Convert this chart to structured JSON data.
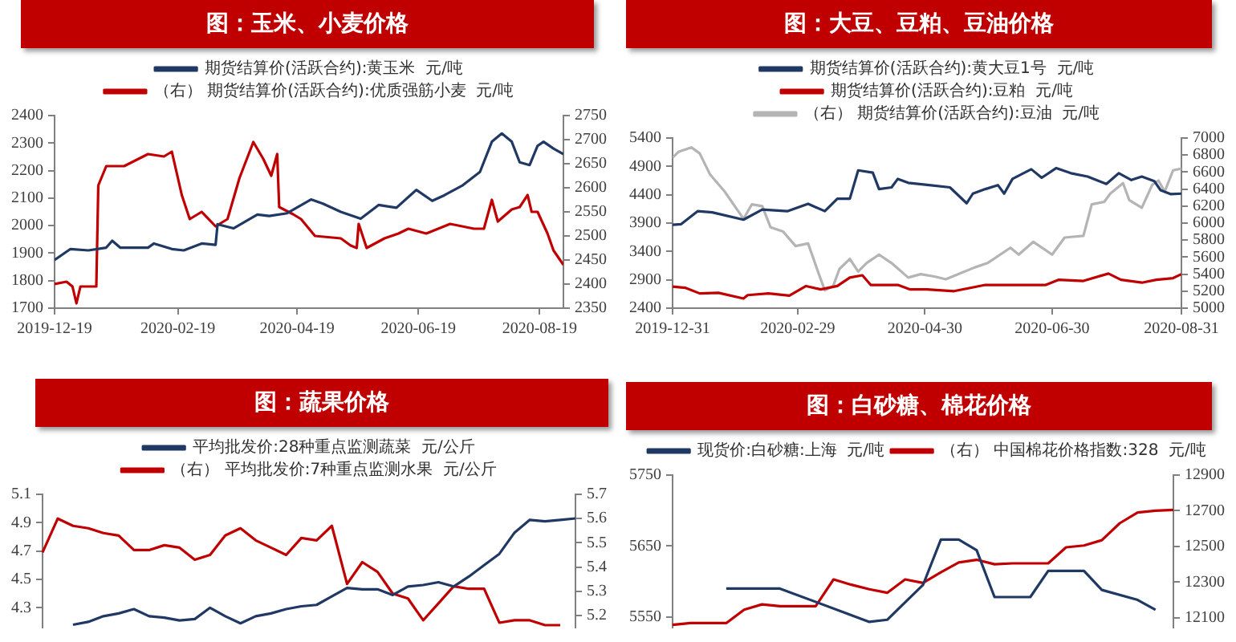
{
  "chart_data": [
    {
      "type": "line",
      "title": "图：玉米、小麦价格",
      "legend": "top",
      "grid": false,
      "xlim": [
        "2019-12-19",
        "2020-08-31"
      ],
      "xticks": [
        "2019-12-19",
        "2020-02-19",
        "2020-04-19",
        "2020-06-19",
        "2020-08-19"
      ],
      "ylim": [
        1700,
        2400
      ],
      "yticks": [
        1700,
        1800,
        1900,
        2000,
        2100,
        2200,
        2300,
        2400
      ],
      "y2lim": [
        2350,
        2750
      ],
      "y2ticks": [
        2350,
        2400,
        2450,
        2500,
        2550,
        2600,
        2650,
        2700,
        2750
      ],
      "series": [
        {
          "name": "期货结算价(活跃合约):黄玉米  元/吨",
          "color": "#203864",
          "x": [
            "2019-12-19",
            "2019-12-27",
            "2020-01-05",
            "2020-01-14",
            "2020-01-17",
            "2020-01-21",
            "2020-02-04",
            "2020-02-07",
            "2020-02-16",
            "2020-02-22",
            "2020-03-02",
            "2020-03-09",
            "2020-03-10",
            "2020-03-18",
            "2020-03-30",
            "2020-04-05",
            "2020-04-14",
            "2020-04-26",
            "2020-05-02",
            "2020-05-11",
            "2020-05-21",
            "2020-05-30",
            "2020-06-08",
            "2020-06-18",
            "2020-06-26",
            "2020-07-02",
            "2020-07-11",
            "2020-07-20",
            "2020-07-26",
            "2020-07-31",
            "2020-08-05",
            "2020-08-09",
            "2020-08-14",
            "2020-08-18",
            "2020-08-21",
            "2020-08-26",
            "2020-08-31"
          ],
          "values": [
            1875,
            1915,
            1910,
            1920,
            1945,
            1920,
            1920,
            1935,
            1915,
            1910,
            1935,
            1930,
            2005,
            1990,
            2040,
            2035,
            2045,
            2095,
            2080,
            2050,
            2025,
            2075,
            2065,
            2130,
            2090,
            2110,
            2145,
            2195,
            2305,
            2335,
            2305,
            2230,
            2220,
            2290,
            2305,
            2280,
            2260
          ]
        },
        {
          "name": "（右） 期货结算价(活跃合约):优质强筋小麦  元/吨",
          "color": "#c00000",
          "axis": "y2",
          "x": [
            "2019-12-19",
            "2019-12-25",
            "2019-12-28",
            "2019-12-30",
            "2020-01-01",
            "2020-01-09",
            "2020-01-10",
            "2020-01-14",
            "2020-01-23",
            "2020-02-04",
            "2020-02-12",
            "2020-02-16",
            "2020-02-21",
            "2020-02-25",
            "2020-03-02",
            "2020-03-09",
            "2020-03-15",
            "2020-03-21",
            "2020-03-28",
            "2020-04-02",
            "2020-04-06",
            "2020-04-09",
            "2020-04-10",
            "2020-04-17",
            "2020-04-21",
            "2020-04-28",
            "2020-05-11",
            "2020-05-16",
            "2020-05-19",
            "2020-05-20",
            "2020-05-24",
            "2020-06-02",
            "2020-06-09",
            "2020-06-14",
            "2020-06-23",
            "2020-07-05",
            "2020-07-17",
            "2020-07-22",
            "2020-07-26",
            "2020-07-29",
            "2020-08-05",
            "2020-08-09",
            "2020-08-13",
            "2020-08-15",
            "2020-08-18",
            "2020-08-23",
            "2020-08-26",
            "2020-08-31"
          ],
          "values": [
            2400,
            2405,
            2395,
            2360,
            2395,
            2395,
            2605,
            2645,
            2645,
            2670,
            2665,
            2675,
            2585,
            2535,
            2550,
            2520,
            2535,
            2620,
            2695,
            2660,
            2625,
            2670,
            2560,
            2545,
            2535,
            2500,
            2495,
            2480,
            2475,
            2525,
            2475,
            2495,
            2505,
            2515,
            2505,
            2525,
            2515,
            2515,
            2575,
            2530,
            2555,
            2560,
            2585,
            2550,
            2550,
            2505,
            2470,
            2440
          ]
        }
      ]
    },
    {
      "type": "line",
      "title": "图：大豆、豆粕、豆油价格",
      "legend": "top",
      "grid": false,
      "xlim": [
        "2019-12-31",
        "2020-08-31"
      ],
      "xticks": [
        "2019-12-31",
        "2020-02-29",
        "2020-04-30",
        "2020-06-30",
        "2020-08-31"
      ],
      "ylim": [
        2400,
        5400
      ],
      "yticks": [
        2400,
        2900,
        3400,
        3900,
        4400,
        4900,
        5400
      ],
      "y2lim": [
        5000,
        7000
      ],
      "y2ticks": [
        5000,
        5200,
        5400,
        5600,
        5800,
        6000,
        6200,
        6400,
        6600,
        6800,
        7000
      ],
      "series": [
        {
          "name": "期货结算价(活跃合约):黄大豆1号  元/吨",
          "color": "#203864",
          "x": [
            "2019-12-31",
            "2020-01-04",
            "2020-01-12",
            "2020-01-19",
            "2020-02-03",
            "2020-02-12",
            "2020-02-24",
            "2020-03-05",
            "2020-03-13",
            "2020-03-19",
            "2020-03-25",
            "2020-03-29",
            "2020-04-05",
            "2020-04-08",
            "2020-04-14",
            "2020-04-17",
            "2020-04-22",
            "2020-05-02",
            "2020-05-12",
            "2020-05-20",
            "2020-05-23",
            "2020-05-29",
            "2020-06-04",
            "2020-06-07",
            "2020-06-11",
            "2020-06-20",
            "2020-06-25",
            "2020-07-02",
            "2020-07-09",
            "2020-07-17",
            "2020-07-26",
            "2020-08-01",
            "2020-08-07",
            "2020-08-12",
            "2020-08-18",
            "2020-08-21",
            "2020-08-26",
            "2020-08-31"
          ],
          "values": [
            3870,
            3880,
            4110,
            4090,
            3960,
            4140,
            4110,
            4240,
            4110,
            4330,
            4330,
            4830,
            4790,
            4500,
            4530,
            4680,
            4610,
            4570,
            4530,
            4250,
            4420,
            4500,
            4570,
            4420,
            4680,
            4850,
            4700,
            4870,
            4780,
            4720,
            4590,
            4780,
            4660,
            4720,
            4640,
            4480,
            4410,
            4420
          ]
        },
        {
          "name": "期货结算价(活跃合约):豆粕  元/吨",
          "color": "#c00000",
          "x": [
            "2019-12-31",
            "2020-01-06",
            "2020-01-13",
            "2020-01-22",
            "2020-02-03",
            "2020-02-05",
            "2020-02-15",
            "2020-02-25",
            "2020-03-04",
            "2020-03-11",
            "2020-03-19",
            "2020-03-25",
            "2020-03-31",
            "2020-04-04",
            "2020-04-17",
            "2020-04-23",
            "2020-05-01",
            "2020-05-14",
            "2020-05-29",
            "2020-06-10",
            "2020-06-27",
            "2020-07-03",
            "2020-07-15",
            "2020-07-27",
            "2020-08-02",
            "2020-08-12",
            "2020-08-19",
            "2020-08-27",
            "2020-08-31"
          ],
          "values": [
            2780,
            2760,
            2660,
            2670,
            2570,
            2630,
            2660,
            2620,
            2790,
            2730,
            2790,
            2940,
            2980,
            2810,
            2810,
            2730,
            2730,
            2700,
            2810,
            2810,
            2810,
            2900,
            2880,
            3010,
            2900,
            2850,
            2900,
            2930,
            3000
          ]
        },
        {
          "name": "（右） 期货结算价(活跃合约):豆油  元/吨",
          "color": "#b4b4b4",
          "axis": "y2",
          "x": [
            "2019-12-31",
            "2020-01-03",
            "2020-01-09",
            "2020-01-13",
            "2020-01-18",
            "2020-01-25",
            "2020-02-03",
            "2020-02-07",
            "2020-02-12",
            "2020-02-16",
            "2020-02-22",
            "2020-02-28",
            "2020-03-05",
            "2020-03-10",
            "2020-03-13",
            "2020-03-17",
            "2020-03-20",
            "2020-03-25",
            "2020-03-29",
            "2020-04-02",
            "2020-04-08",
            "2020-04-14",
            "2020-04-22",
            "2020-04-28",
            "2020-05-05",
            "2020-05-10",
            "2020-05-17",
            "2020-05-24",
            "2020-05-30",
            "2020-06-10",
            "2020-06-14",
            "2020-06-21",
            "2020-06-30",
            "2020-07-06",
            "2020-07-15",
            "2020-07-19",
            "2020-07-25",
            "2020-07-28",
            "2020-08-03",
            "2020-08-06",
            "2020-08-12",
            "2020-08-17",
            "2020-08-20",
            "2020-08-23",
            "2020-08-27",
            "2020-08-31"
          ],
          "values": [
            6770,
            6840,
            6890,
            6820,
            6570,
            6370,
            6050,
            6220,
            6200,
            5950,
            5900,
            5730,
            5760,
            5410,
            5210,
            5260,
            5460,
            5580,
            5430,
            5530,
            5630,
            5530,
            5360,
            5400,
            5370,
            5340,
            5410,
            5480,
            5530,
            5710,
            5630,
            5780,
            5630,
            5830,
            5850,
            6220,
            6250,
            6350,
            6470,
            6270,
            6180,
            6450,
            6500,
            6370,
            6620,
            6640
          ]
        }
      ]
    },
    {
      "type": "line",
      "title": "图：蔬果价格",
      "legend": "top",
      "grid": false,
      "tick_labels": "y",
      "categories": [
        null,
        null,
        null,
        null,
        null,
        null,
        null,
        null,
        null,
        null,
        null,
        null,
        null,
        null,
        null,
        null,
        null,
        null,
        null,
        null,
        null,
        null,
        null,
        null,
        null,
        null,
        null,
        null,
        null,
        null,
        null,
        null,
        null,
        null,
        null,
        null
      ],
      "ylim": [
        4.16,
        5.1
      ],
      "yticks": [
        4.3,
        4.5,
        4.7,
        4.9,
        5.1
      ],
      "y2lim": [
        5.15,
        5.7
      ],
      "y2ticks": [
        5.2,
        5.3,
        5.4,
        5.5,
        5.6,
        5.7
      ],
      "series": [
        {
          "name": "平均批发价:28种重点监测蔬菜  元/公斤",
          "color": "#203864",
          "values": [
            null,
            null,
            4.18,
            4.2,
            4.24,
            4.26,
            4.29,
            4.24,
            4.23,
            4.21,
            4.22,
            4.3,
            4.24,
            4.19,
            4.24,
            4.26,
            4.29,
            4.31,
            4.32,
            4.38,
            4.44,
            4.43,
            4.43,
            4.39,
            4.45,
            4.46,
            4.48,
            4.45,
            4.52,
            4.6,
            4.68,
            4.83,
            4.92,
            4.91,
            4.92,
            4.93
          ]
        },
        {
          "name": "（右） 平均批发价:7种重点监测水果  元/公斤",
          "color": "#c00000",
          "axis": "y2",
          "values": [
            5.46,
            5.6,
            5.57,
            5.56,
            5.54,
            5.53,
            5.47,
            5.47,
            5.49,
            5.48,
            5.43,
            5.45,
            5.53,
            5.56,
            5.51,
            5.48,
            5.45,
            5.52,
            5.51,
            5.57,
            5.33,
            5.42,
            5.38,
            5.29,
            5.27,
            5.18,
            5.25,
            5.32,
            5.31,
            5.31,
            5.17,
            5.18,
            5.18,
            5.16,
            5.16,
            null
          ]
        }
      ]
    },
    {
      "type": "line",
      "title": "图：白砂糖、棉花价格",
      "legend": "top",
      "grid": false,
      "tick_labels": "y",
      "categories": [
        null,
        null,
        null,
        null,
        null,
        null,
        null,
        null,
        null,
        null,
        null,
        null,
        null,
        null,
        null,
        null,
        null,
        null,
        null,
        null,
        null,
        null,
        null,
        null,
        null,
        null,
        null,
        null,
        null
      ],
      "ylim": [
        5535,
        5750
      ],
      "yticks": [
        5550,
        5650,
        5750
      ],
      "y2lim": [
        12045,
        12900
      ],
      "y2ticks": [
        12100,
        12300,
        12500,
        12700,
        12900
      ],
      "series": [
        {
          "name": "现货价:白砂糖:上海  元/吨",
          "color": "#203864",
          "values": [
            null,
            null,
            null,
            5590,
            5590,
            5590,
            5590,
            null,
            null,
            null,
            null,
            5543,
            5546,
            null,
            5595,
            5659,
            5659,
            5644,
            5578,
            5578,
            5578,
            5615,
            5615,
            5615,
            5588,
            null,
            5574,
            5560,
            null
          ]
        },
        {
          "name": "（右） 中国棉花价格指数:328  元/吨",
          "color": "#c00000",
          "axis": "y2",
          "values": [
            12060,
            12070,
            12070,
            12070,
            12145,
            12175,
            12165,
            12165,
            12165,
            12315,
            12285,
            12260,
            12240,
            12315,
            12295,
            12355,
            12410,
            12425,
            12400,
            12405,
            12405,
            12405,
            12495,
            12505,
            12535,
            12630,
            12690,
            12700,
            12705
          ]
        }
      ]
    }
  ]
}
